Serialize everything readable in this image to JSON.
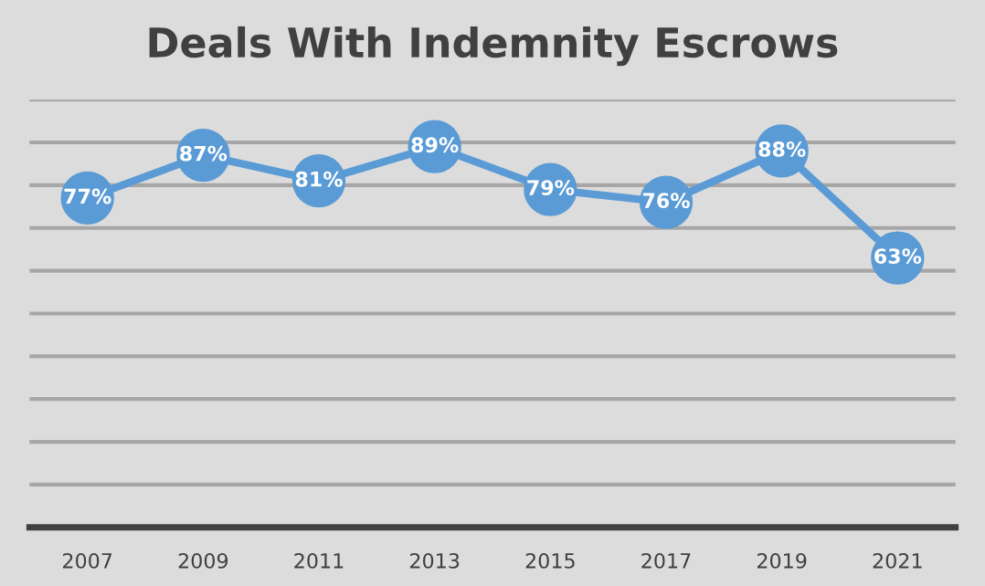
{
  "chart_data": {
    "type": "line",
    "title": "Deals With Indemnity Escrows",
    "categories": [
      "2007",
      "2009",
      "2011",
      "2013",
      "2015",
      "2017",
      "2019",
      "2021"
    ],
    "series": [
      {
        "color": "#5b9bd5",
        "values": [
          77,
          87,
          81,
          89,
          79,
          76,
          88,
          63
        ],
        "value_labels": [
          "77%",
          "87%",
          "81%",
          "89%",
          "79%",
          "76%",
          "88%",
          "63%"
        ]
      }
    ],
    "ylim": [
      0,
      100
    ],
    "yticks": [
      {
        "value": 0,
        "label": null
      },
      {
        "value": 10,
        "label": null
      },
      {
        "value": 20,
        "label": null
      },
      {
        "value": 30,
        "label": null
      },
      {
        "value": 40,
        "label": null
      },
      {
        "value": 50,
        "label": null
      },
      {
        "value": 60,
        "label": null
      },
      {
        "value": 70,
        "label": null
      },
      {
        "value": 80,
        "label": null
      },
      {
        "value": 90,
        "label": null
      },
      {
        "value": 100,
        "label": null
      }
    ],
    "tick_labels": "x",
    "grid": "y",
    "marker": "circle",
    "line_style": "solid",
    "legend": false
  }
}
